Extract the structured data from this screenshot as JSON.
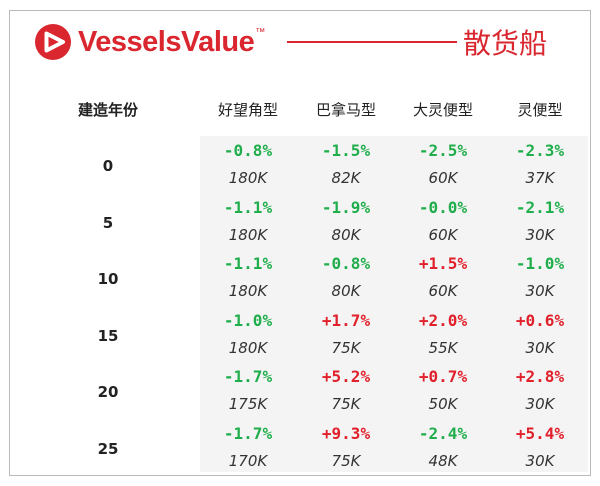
{
  "brand": {
    "name": "VesselsValue",
    "trademark": "™",
    "category": "散货船",
    "colors": {
      "accent": "#d9262f"
    }
  },
  "table": {
    "age_header": "建造年份",
    "columns": [
      "好望角型",
      "巴拿马型",
      "大灵便型",
      "灵便型"
    ],
    "rows": [
      {
        "age": "0",
        "changes": [
          "-0.8%",
          "-1.5%",
          "-2.5%",
          "-2.3%"
        ],
        "prices": [
          "180K",
          "82K",
          "60K",
          "37K"
        ]
      },
      {
        "age": "5",
        "changes": [
          "-1.1%",
          "-1.9%",
          "-0.0%",
          "-2.1%"
        ],
        "prices": [
          "180K",
          "80K",
          "60K",
          "30K"
        ]
      },
      {
        "age": "10",
        "changes": [
          "-1.1%",
          "-0.8%",
          "+1.5%",
          "-1.0%"
        ],
        "prices": [
          "180K",
          "80K",
          "60K",
          "30K"
        ]
      },
      {
        "age": "15",
        "changes": [
          "-1.0%",
          "+1.7%",
          "+2.0%",
          "+0.6%"
        ],
        "prices": [
          "180K",
          "75K",
          "55K",
          "30K"
        ]
      },
      {
        "age": "20",
        "changes": [
          "-1.7%",
          "+5.2%",
          "+0.7%",
          "+2.8%"
        ],
        "prices": [
          "175K",
          "75K",
          "50K",
          "30K"
        ]
      },
      {
        "age": "25",
        "changes": [
          "-1.7%",
          "+9.3%",
          "-2.4%",
          "+5.4%"
        ],
        "prices": [
          "170K",
          "75K",
          "48K",
          "30K"
        ]
      }
    ],
    "colors": {
      "negative": "#1fae4b",
      "positive": "#e0202a"
    }
  }
}
